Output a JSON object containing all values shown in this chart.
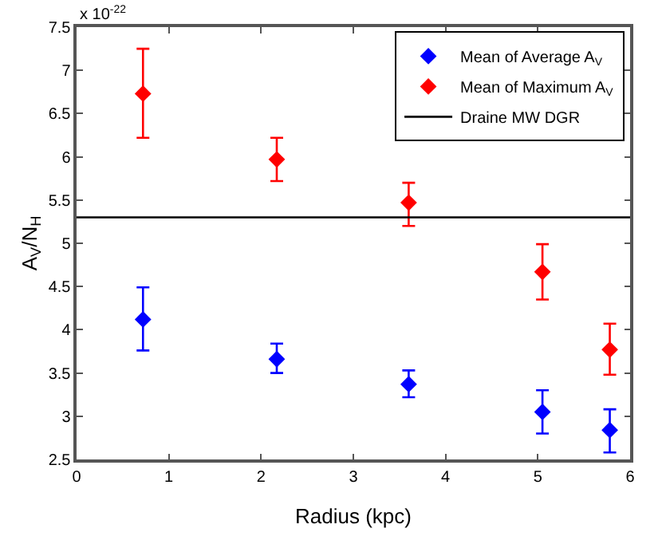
{
  "chart_data": {
    "type": "scatter",
    "xlabel": "Radius (kpc)",
    "ylabel": "A$_{V}$/N$_{H}$",
    "annotations": [
      "x 10$^{-22}$"
    ],
    "xlim": [
      0,
      6
    ],
    "xticks": [
      0,
      1,
      2,
      3,
      4,
      5,
      6
    ],
    "ylim": [
      2.5,
      7.5
    ],
    "yticks": [
      2.5,
      3,
      3.5,
      4,
      4.5,
      5,
      5.5,
      6,
      6.5,
      7,
      7.5
    ],
    "marker": "diamond",
    "legend": "top right",
    "series": [
      {
        "name": "Mean of Average A$_{V}$",
        "color": "#0000ff",
        "x": [
          0.72,
          2.17,
          3.6,
          5.05,
          5.78
        ],
        "values": [
          4.12,
          3.66,
          3.37,
          3.05,
          2.84
        ],
        "errors": [
          [
            3.76,
            4.49
          ],
          [
            3.5,
            3.84
          ],
          [
            3.22,
            3.53
          ],
          [
            2.8,
            3.3
          ],
          [
            2.58,
            3.08
          ]
        ]
      },
      {
        "name": "Mean of Maximum A$_{V}$",
        "color": "#ff0000",
        "x": [
          0.72,
          2.17,
          3.6,
          5.05,
          5.78
        ],
        "values": [
          6.73,
          5.97,
          5.47,
          4.67,
          3.77
        ],
        "errors": [
          [
            6.22,
            7.25
          ],
          [
            5.72,
            6.22
          ],
          [
            5.2,
            5.7
          ],
          [
            4.35,
            4.99
          ],
          [
            3.48,
            4.07
          ]
        ]
      }
    ],
    "ref_lines": [
      {
        "axis": "y",
        "value": 5.3,
        "label": "Draine MW DGR",
        "color": "#000000"
      }
    ]
  }
}
